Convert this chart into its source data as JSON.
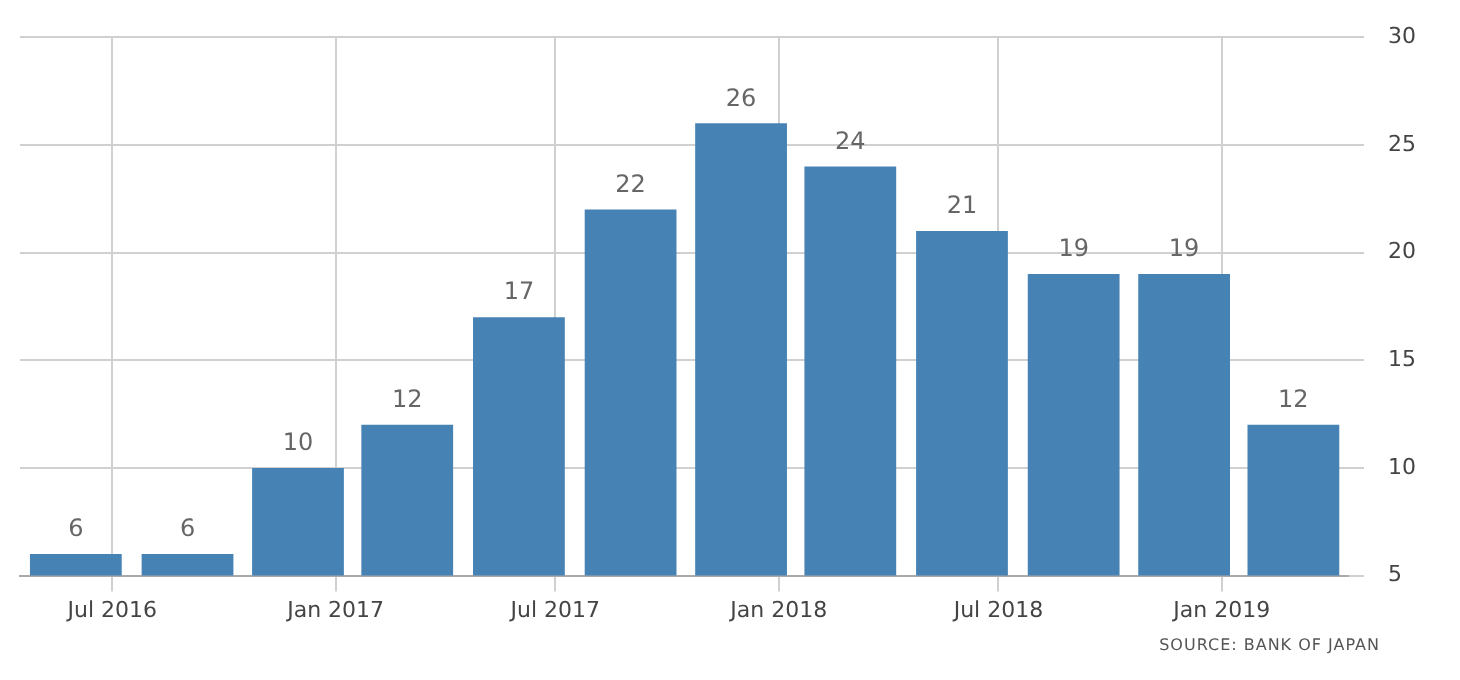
{
  "chart_data": {
    "type": "bar",
    "x": [
      "2016-06",
      "2016-09",
      "2016-12",
      "2017-03",
      "2017-06",
      "2017-09",
      "2017-12",
      "2018-03",
      "2018-06",
      "2018-09",
      "2018-12",
      "2019-03"
    ],
    "values": [
      6,
      6,
      10,
      12,
      17,
      22,
      26,
      24,
      21,
      19,
      19,
      12
    ],
    "color": "#4682b4",
    "xlim": [
      "2016-04-16",
      "2019-04-15"
    ],
    "xticks": [
      {
        "value": "2016-07",
        "label": "Jul 2016"
      },
      {
        "value": "2017-01",
        "label": "Jan 2017"
      },
      {
        "value": "2017-07",
        "label": "Jul 2017"
      },
      {
        "value": "2018-01",
        "label": "Jan 2018"
      },
      {
        "value": "2018-07",
        "label": "Jul 2018"
      },
      {
        "value": "2019-01",
        "label": "Jan 2019"
      }
    ],
    "ylim": [
      5,
      30
    ],
    "yticks": [
      5,
      10,
      15,
      20,
      25,
      30
    ],
    "grid": true,
    "legend": false,
    "data_labels": true,
    "annotations": [
      "SOURCE: BANK OF JAPAN"
    ]
  }
}
